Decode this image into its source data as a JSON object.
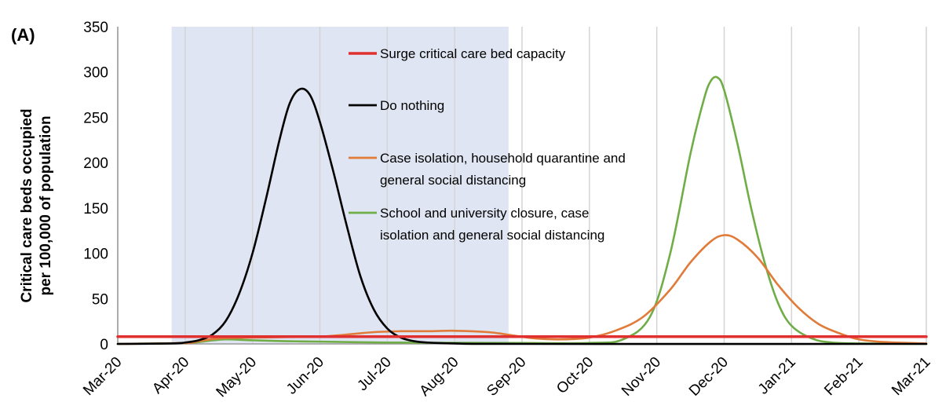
{
  "chart_data": {
    "type": "line",
    "panel_label": "(A)",
    "title": "",
    "xlabel": "",
    "ylabel_lines": [
      "Critical care beds occupied",
      "per 100,000 of population"
    ],
    "ylim": [
      0,
      350
    ],
    "yticks": [
      0,
      50,
      100,
      150,
      200,
      250,
      300,
      350
    ],
    "x_categories": [
      "Mar-20",
      "Apr-20",
      "May-20",
      "Jun-20",
      "Jul-20",
      "Aug-20",
      "Sep-20",
      "Oct-20",
      "Nov-20",
      "Dec-20",
      "Jan-21",
      "Feb-21",
      "Mar-21"
    ],
    "x_unit": "months since Mar-20",
    "grid": "vertical",
    "shaded_region": {
      "x_start": 0.8,
      "x_end": 5.8,
      "color": "#dfe5f2"
    },
    "series": [
      {
        "name": "Surge critical care bed capacity",
        "color": "#e03030",
        "points": [
          [
            0,
            8
          ],
          [
            12,
            8
          ]
        ]
      },
      {
        "name": "Do nothing",
        "color": "#000000",
        "points": [
          [
            0,
            0
          ],
          [
            0.8,
            0.5
          ],
          [
            1.0,
            1.5
          ],
          [
            1.2,
            4
          ],
          [
            1.4,
            10
          ],
          [
            1.6,
            25
          ],
          [
            1.8,
            55
          ],
          [
            2.0,
            100
          ],
          [
            2.2,
            160
          ],
          [
            2.4,
            225
          ],
          [
            2.55,
            265
          ],
          [
            2.7,
            281
          ],
          [
            2.85,
            275
          ],
          [
            3.0,
            245
          ],
          [
            3.2,
            190
          ],
          [
            3.4,
            130
          ],
          [
            3.6,
            75
          ],
          [
            3.8,
            38
          ],
          [
            4.0,
            17
          ],
          [
            4.2,
            7
          ],
          [
            4.4,
            3
          ],
          [
            4.6,
            1.5
          ],
          [
            5.0,
            0.5
          ],
          [
            6.0,
            0
          ],
          [
            12,
            0
          ]
        ]
      },
      {
        "name": "Case isolation, household quarantine and general social distancing",
        "color": "#e07b39",
        "points": [
          [
            0,
            0
          ],
          [
            1.0,
            1
          ],
          [
            1.2,
            3
          ],
          [
            1.5,
            6
          ],
          [
            2.0,
            7
          ],
          [
            2.5,
            7.5
          ],
          [
            3.0,
            8
          ],
          [
            3.5,
            11
          ],
          [
            3.8,
            13
          ],
          [
            4.2,
            14
          ],
          [
            4.6,
            14
          ],
          [
            5.0,
            14.5
          ],
          [
            5.5,
            13
          ],
          [
            5.8,
            10
          ],
          [
            6.2,
            6
          ],
          [
            6.6,
            5
          ],
          [
            7.0,
            7
          ],
          [
            7.4,
            15
          ],
          [
            7.8,
            30
          ],
          [
            8.2,
            60
          ],
          [
            8.5,
            90
          ],
          [
            8.8,
            113
          ],
          [
            9.0,
            120
          ],
          [
            9.2,
            115
          ],
          [
            9.5,
            95
          ],
          [
            9.8,
            65
          ],
          [
            10.1,
            40
          ],
          [
            10.4,
            22
          ],
          [
            10.7,
            12
          ],
          [
            11.0,
            5
          ],
          [
            11.4,
            2
          ],
          [
            12,
            0.5
          ]
        ]
      },
      {
        "name": "School and university closure, case isolation and general social distancing",
        "color": "#70ad47",
        "points": [
          [
            0,
            0
          ],
          [
            1.0,
            1
          ],
          [
            1.3,
            3
          ],
          [
            1.6,
            5
          ],
          [
            2.0,
            4
          ],
          [
            2.5,
            3
          ],
          [
            3.0,
            2.5
          ],
          [
            4.0,
            1.5
          ],
          [
            5.0,
            1.2
          ],
          [
            6.0,
            1
          ],
          [
            7.0,
            1
          ],
          [
            7.5,
            5
          ],
          [
            7.9,
            30
          ],
          [
            8.2,
            100
          ],
          [
            8.5,
            210
          ],
          [
            8.7,
            270
          ],
          [
            8.8,
            290
          ],
          [
            8.9,
            294
          ],
          [
            9.0,
            280
          ],
          [
            9.2,
            220
          ],
          [
            9.4,
            150
          ],
          [
            9.6,
            90
          ],
          [
            9.8,
            45
          ],
          [
            10.0,
            20
          ],
          [
            10.3,
            6
          ],
          [
            10.6,
            1.5
          ],
          [
            11.0,
            0.5
          ],
          [
            12,
            0
          ]
        ]
      }
    ]
  }
}
